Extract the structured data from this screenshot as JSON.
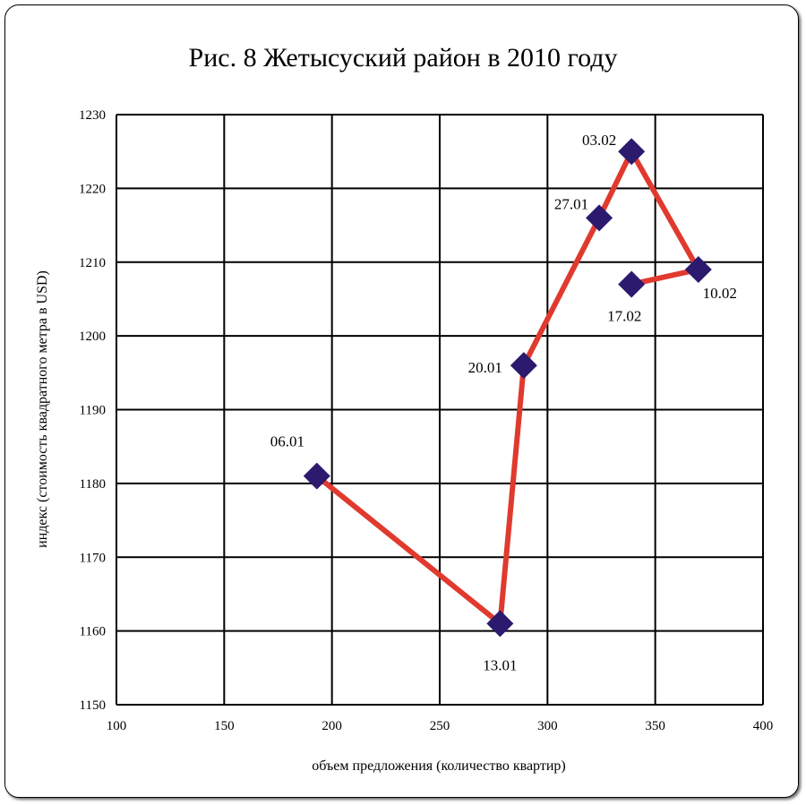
{
  "chart_data": {
    "type": "line",
    "title": "Рис. 8 Жетысуский район в 2010 году",
    "xlabel": "объем предложения (количество квартир)",
    "ylabel": "индекс (стоимость квадратного метра в USD)",
    "xlim": [
      100,
      400
    ],
    "ylim": [
      1150,
      1230
    ],
    "xticks": [
      100,
      150,
      200,
      250,
      300,
      350,
      400
    ],
    "yticks": [
      1150,
      1160,
      1170,
      1180,
      1190,
      1200,
      1210,
      1220,
      1230
    ],
    "grid": true,
    "legend": "none",
    "colors": {
      "line": "#e03a2f",
      "marker": "#2b1a6e",
      "grid": "#000000"
    },
    "points": [
      {
        "label": "06.01",
        "x": 193,
        "y": 1181
      },
      {
        "label": "13.01",
        "x": 278,
        "y": 1161
      },
      {
        "label": "20.01",
        "x": 289,
        "y": 1196
      },
      {
        "label": "27.01",
        "x": 324,
        "y": 1216
      },
      {
        "label": "03.02",
        "x": 339,
        "y": 1225
      },
      {
        "label": "10.02",
        "x": 370,
        "y": 1209
      },
      {
        "label": "17.02",
        "x": 339,
        "y": 1207
      }
    ]
  }
}
